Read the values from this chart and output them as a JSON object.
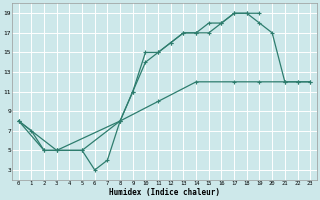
{
  "xlabel": "Humidex (Indice chaleur)",
  "background_color": "#cde8ea",
  "grid_color": "#ffffff",
  "line_color": "#2e7d6e",
  "xlim": [
    -0.5,
    23.5
  ],
  "ylim": [
    2.0,
    20.0
  ],
  "xticks": [
    0,
    1,
    2,
    3,
    4,
    5,
    6,
    7,
    8,
    9,
    10,
    11,
    12,
    13,
    14,
    15,
    16,
    17,
    18,
    19,
    20,
    21,
    22,
    23
  ],
  "yticks": [
    3,
    5,
    7,
    9,
    11,
    13,
    15,
    17,
    19
  ],
  "line1_x": [
    0,
    1,
    2,
    3,
    5,
    6,
    7,
    8,
    9,
    10,
    11,
    12,
    13,
    14,
    15,
    16,
    17,
    18,
    19
  ],
  "line1_y": [
    8,
    7,
    5,
    5,
    5,
    3,
    4,
    8,
    11,
    15,
    15,
    16,
    17,
    17,
    18,
    18,
    19,
    19,
    19
  ],
  "line2_x": [
    0,
    2,
    3,
    5,
    8,
    9,
    10,
    11,
    12,
    13,
    14,
    15,
    16,
    17,
    18,
    19,
    20,
    21,
    22,
    23
  ],
  "line2_y": [
    8,
    5,
    5,
    5,
    8,
    11,
    14,
    15,
    16,
    17,
    17,
    17,
    18,
    19,
    19,
    18,
    17,
    12,
    12,
    12
  ],
  "line3_x": [
    0,
    3,
    8,
    11,
    14,
    17,
    19,
    21,
    22,
    23
  ],
  "line3_y": [
    8,
    5,
    8,
    10,
    12,
    12,
    12,
    12,
    12,
    12
  ]
}
